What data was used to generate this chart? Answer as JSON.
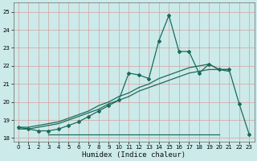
{
  "xlabel": "Humidex (Indice chaleur)",
  "background_color": "#cceaea",
  "grid_color": "#b8d8d8",
  "line_color": "#1a6b5a",
  "xlim": [
    -0.5,
    23.5
  ],
  "ylim": [
    17.8,
    25.5
  ],
  "yticks": [
    18,
    19,
    20,
    21,
    22,
    23,
    24,
    25
  ],
  "xticks": [
    0,
    1,
    2,
    3,
    4,
    5,
    6,
    7,
    8,
    9,
    10,
    11,
    12,
    13,
    14,
    15,
    16,
    17,
    18,
    19,
    20,
    21,
    22,
    23
  ],
  "series_main_x": [
    0,
    1,
    2,
    3,
    4,
    5,
    6,
    7,
    8,
    9,
    10,
    11,
    12,
    13,
    14,
    15,
    16,
    17,
    18,
    19,
    20,
    21,
    22,
    23
  ],
  "series_main_y": [
    18.6,
    18.5,
    18.4,
    18.4,
    18.5,
    18.7,
    18.9,
    19.2,
    19.5,
    19.8,
    20.1,
    21.6,
    21.5,
    21.3,
    23.4,
    24.8,
    22.8,
    22.8,
    21.6,
    22.1,
    21.8,
    21.8,
    19.9,
    18.2
  ],
  "series_trend1_x": [
    0,
    1,
    2,
    3,
    4,
    5,
    6,
    7,
    8,
    9,
    10,
    11,
    12,
    13,
    14,
    15,
    16,
    17,
    18,
    19,
    20,
    21
  ],
  "series_trend1_y": [
    18.6,
    18.6,
    18.7,
    18.8,
    18.9,
    19.1,
    19.3,
    19.5,
    19.8,
    20.0,
    20.3,
    20.5,
    20.8,
    21.0,
    21.3,
    21.5,
    21.7,
    21.9,
    22.0,
    22.1,
    21.8,
    21.7
  ],
  "series_trend2_x": [
    0,
    1,
    2,
    3,
    4,
    5,
    6,
    7,
    8,
    9,
    10,
    11,
    12,
    13,
    14,
    15,
    16,
    17,
    18,
    19,
    20,
    21
  ],
  "series_trend2_y": [
    18.5,
    18.5,
    18.6,
    18.7,
    18.8,
    19.0,
    19.2,
    19.4,
    19.6,
    19.9,
    20.1,
    20.3,
    20.6,
    20.8,
    21.0,
    21.2,
    21.4,
    21.6,
    21.7,
    21.8,
    21.8,
    21.8
  ],
  "flat_line_x": [
    3,
    20
  ],
  "flat_line_y": [
    18.2,
    18.2
  ]
}
